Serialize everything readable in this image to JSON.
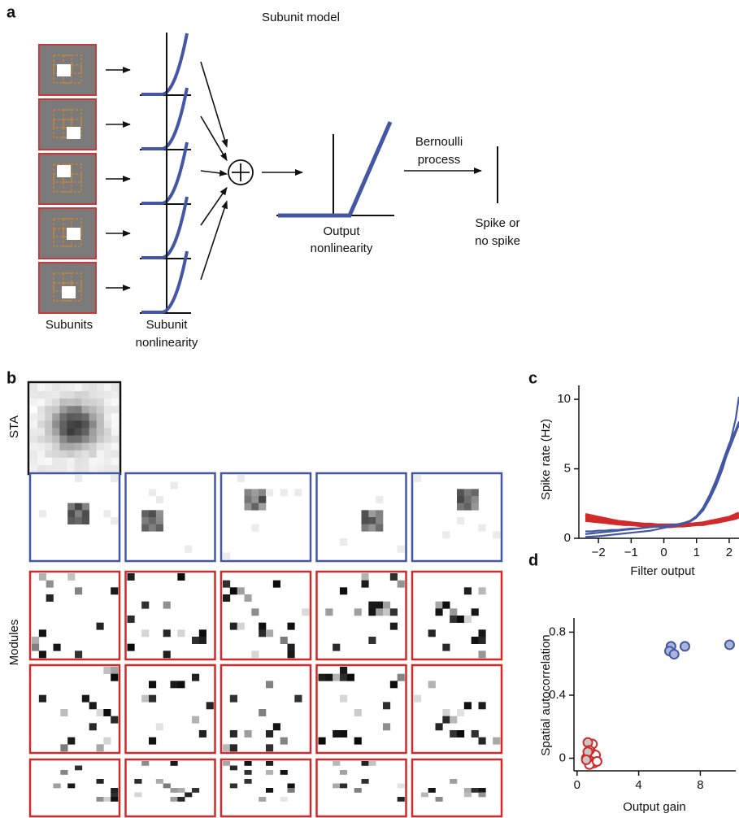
{
  "panel_a": {
    "label": "a",
    "title": "Subunit model",
    "subunits_label": "Subunits",
    "subunit_nonlinearity": [
      "Subunit",
      "nonlinearity"
    ],
    "output_nonlinearity": [
      "Output",
      "nonlinearity"
    ],
    "process": [
      "Bernoulli",
      "process"
    ],
    "spike": [
      "Spike or",
      "no spike"
    ]
  },
  "panel_b": {
    "label": "b",
    "sta_label": "STA",
    "modules_label": "Modules"
  },
  "chart_data": [
    {
      "panel": "c",
      "type": "line",
      "xlabel": "Filter output",
      "ylabel": "Spike rate (Hz)",
      "x": [
        -2.4,
        -2.2,
        -2.0,
        -1.8,
        -1.6,
        -1.4,
        -1.2,
        -1.0,
        -0.8,
        -0.6,
        -0.4,
        -0.2,
        0,
        0.2,
        0.4,
        0.6,
        0.8,
        1.0,
        1.2,
        1.4,
        1.6,
        1.8,
        2.0,
        2.2,
        2.3
      ],
      "series": [
        {
          "color": "#d12a2a",
          "values": [
            1.7,
            1.6,
            1.5,
            1.4,
            1.3,
            1.2,
            1.15,
            1.1,
            1.05,
            1.0,
            1.0,
            0.95,
            0.95,
            0.95,
            0.95,
            1.0,
            1.0,
            1.05,
            1.1,
            1.2,
            1.3,
            1.4,
            1.5,
            1.7,
            1.8
          ]
        },
        {
          "color": "#d12a2a",
          "values": [
            1.3,
            1.25,
            1.2,
            1.15,
            1.1,
            1.05,
            1.0,
            1.0,
            0.95,
            0.9,
            0.9,
            0.9,
            0.85,
            0.85,
            0.9,
            0.9,
            0.95,
            1.0,
            1.0,
            1.1,
            1.15,
            1.25,
            1.35,
            1.45,
            1.55
          ]
        },
        {
          "color": "#d12a2a",
          "values": [
            1.5,
            1.45,
            1.35,
            1.3,
            1.2,
            1.15,
            1.1,
            1.05,
            1.0,
            0.95,
            0.95,
            0.9,
            0.9,
            0.9,
            0.9,
            0.95,
            0.95,
            1.0,
            1.05,
            1.1,
            1.2,
            1.3,
            1.4,
            1.55,
            1.65
          ]
        },
        {
          "color": "#4457a5",
          "values": [
            0.5,
            0.5,
            0.55,
            0.55,
            0.6,
            0.6,
            0.65,
            0.7,
            0.7,
            0.75,
            0.8,
            0.85,
            0.9,
            0.95,
            1.0,
            1.1,
            1.2,
            1.5,
            2.0,
            2.8,
            3.8,
            5.0,
            6.6,
            8.6,
            10.2
          ]
        },
        {
          "color": "#4457a5",
          "values": [
            0.1,
            0.12,
            0.15,
            0.2,
            0.25,
            0.3,
            0.35,
            0.4,
            0.45,
            0.5,
            0.55,
            0.65,
            0.75,
            0.85,
            0.95,
            1.05,
            1.2,
            1.5,
            2.1,
            3.0,
            4.0,
            5.2,
            6.4,
            7.6,
            8.2
          ]
        },
        {
          "color": "#4457a5",
          "values": [
            0.3,
            0.35,
            0.4,
            0.45,
            0.5,
            0.55,
            0.6,
            0.65,
            0.7,
            0.75,
            0.8,
            0.85,
            0.9,
            0.95,
            1.0,
            1.1,
            1.25,
            1.6,
            2.2,
            3.1,
            4.2,
            5.5,
            6.8,
            7.8,
            8.4
          ]
        }
      ],
      "xlim": [
        -2.6,
        2.3
      ],
      "ylim": [
        0,
        11
      ],
      "xticks": [
        {
          "value": -2,
          "label": "−2"
        },
        {
          "value": -1,
          "label": "−1"
        },
        0,
        1,
        2
      ],
      "yticks": [
        0,
        5,
        10
      ]
    },
    {
      "panel": "d",
      "type": "scatter",
      "xlabel": "Output gain",
      "ylabel": "Spatial autocorrelation",
      "series": [
        {
          "color": "#4457a5",
          "fill": "#aab4da",
          "x": [
            6.1,
            6.0,
            6.3,
            7.0,
            9.9
          ],
          "y": [
            0.71,
            0.68,
            0.66,
            0.71,
            0.72
          ]
        },
        {
          "color": "#d12a2a",
          "fill": "#ffffff",
          "x": [
            0.9,
            1.0,
            1.2,
            0.6,
            0.9,
            1.1,
            0.8,
            1.3,
            1.0
          ],
          "y": [
            0.08,
            0.03,
            0.02,
            0.0,
            -0.02,
            -0.03,
            -0.04,
            -0.02,
            0.09
          ]
        },
        {
          "color": "#d12a2a",
          "fill": "#c8c8c8",
          "x": [
            0.7,
            0.8,
            0.7,
            0.6
          ],
          "y": [
            0.1,
            0.05,
            0.04,
            -0.01
          ]
        }
      ],
      "xlim": [
        -0.2,
        10.3
      ],
      "ylim": [
        -0.08,
        0.89
      ],
      "xticks": [
        0,
        4,
        8
      ],
      "yticks": [
        0,
        0.4,
        0.8
      ]
    }
  ]
}
